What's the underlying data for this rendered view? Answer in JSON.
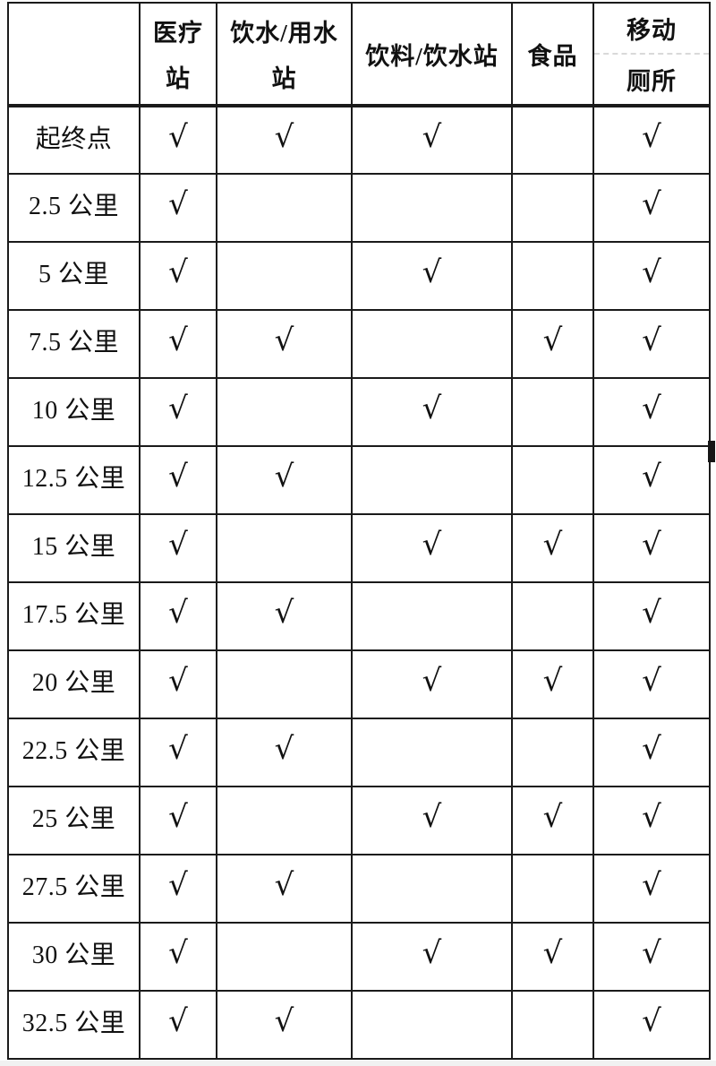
{
  "page": {
    "background": "#fdfdfd",
    "border_color": "#1a1a1a",
    "header_divider_color": "#d9d9d9"
  },
  "table": {
    "check_glyph": "√",
    "corner_label": "",
    "columns": [
      {
        "label": "医疗站",
        "lines": [
          "医疗",
          "站"
        ]
      },
      {
        "label": "饮水/用水站",
        "lines": [
          "饮水/用水",
          "站"
        ]
      },
      {
        "label": "饮料/饮水站",
        "lines": [
          "饮料/饮水站"
        ]
      },
      {
        "label": "食品",
        "lines": [
          "食品"
        ]
      },
      {
        "label": "移动厕所",
        "lines": [
          "移动",
          "厕所"
        ],
        "divider": true
      }
    ],
    "rows": [
      {
        "label": "起终点",
        "checks": [
          true,
          true,
          true,
          false,
          true
        ]
      },
      {
        "label": "2.5 公里",
        "checks": [
          true,
          false,
          false,
          false,
          true
        ]
      },
      {
        "label": "5 公里",
        "checks": [
          true,
          false,
          true,
          false,
          true
        ]
      },
      {
        "label": "7.5 公里",
        "checks": [
          true,
          true,
          false,
          true,
          true
        ]
      },
      {
        "label": "10 公里",
        "checks": [
          true,
          false,
          true,
          false,
          true
        ]
      },
      {
        "label": "12.5 公里",
        "checks": [
          true,
          true,
          false,
          false,
          true
        ]
      },
      {
        "label": "15 公里",
        "checks": [
          true,
          false,
          true,
          true,
          true
        ]
      },
      {
        "label": "17.5 公里",
        "checks": [
          true,
          true,
          false,
          false,
          true
        ]
      },
      {
        "label": "20 公里",
        "checks": [
          true,
          false,
          true,
          true,
          true
        ]
      },
      {
        "label": "22.5 公里",
        "checks": [
          true,
          true,
          false,
          false,
          true
        ]
      },
      {
        "label": "25 公里",
        "checks": [
          true,
          false,
          true,
          true,
          true
        ]
      },
      {
        "label": "27.5 公里",
        "checks": [
          true,
          true,
          false,
          false,
          true
        ]
      },
      {
        "label": "30 公里",
        "checks": [
          true,
          false,
          true,
          true,
          true
        ]
      },
      {
        "label": "32.5 公里",
        "checks": [
          true,
          true,
          false,
          false,
          true
        ]
      }
    ]
  }
}
